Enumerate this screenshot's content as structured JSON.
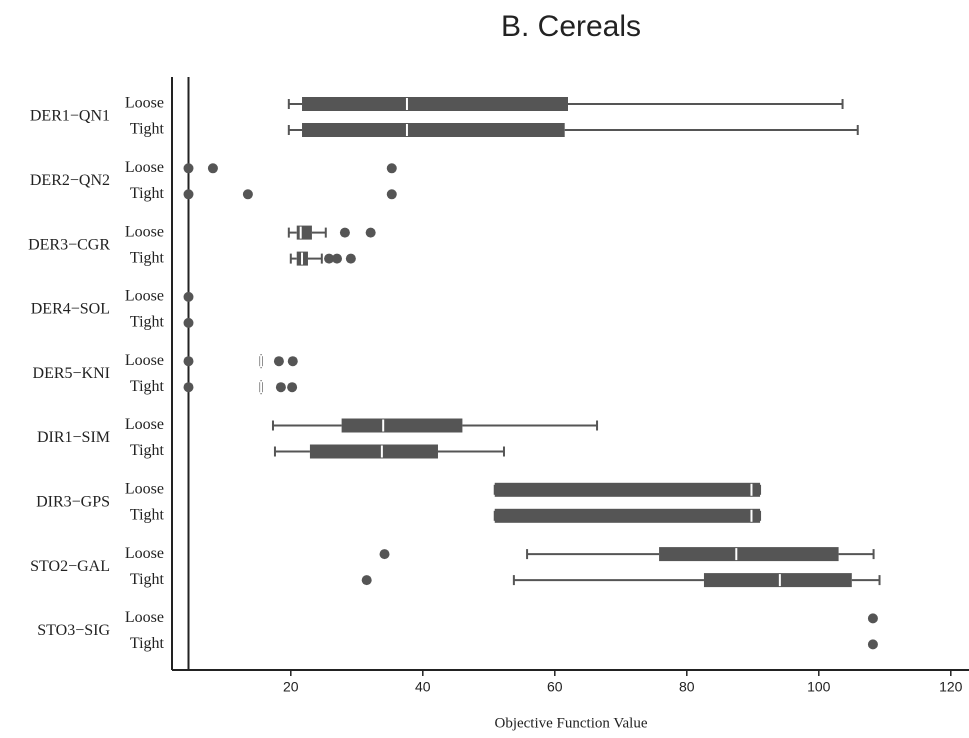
{
  "chart_data": {
    "type": "boxplot",
    "orientation": "horizontal",
    "title": "B. Cereals",
    "x_label": "Objective Function Value",
    "xlim": [
      2,
      122
    ],
    "xticks": [
      20,
      40,
      60,
      80,
      100,
      120
    ],
    "reference_line": 4.5,
    "color": "#555555",
    "median_color": "#ffffff",
    "groups": [
      {
        "name": "DER1−QN1",
        "rows": [
          {
            "name": "Loose",
            "box": {
              "min": 19.7,
              "q1": 21.7,
              "median": 37.6,
              "q3": 62,
              "max": 103.6
            },
            "outliers": []
          },
          {
            "name": "Tight",
            "box": {
              "min": 19.7,
              "q1": 21.7,
              "median": 37.6,
              "q3": 61.5,
              "max": 105.9
            },
            "outliers": []
          }
        ]
      },
      {
        "name": "DER2−QN2",
        "rows": [
          {
            "name": "Loose",
            "box": null,
            "outliers": [
              4.5,
              8.2,
              35.3
            ]
          },
          {
            "name": "Tight",
            "box": null,
            "outliers": [
              4.5,
              13.5,
              35.3
            ]
          }
        ]
      },
      {
        "name": "DER3−CGR",
        "rows": [
          {
            "name": "Loose",
            "box": {
              "min": 19.7,
              "q1": 20.9,
              "median": 21.5,
              "q3": 23.2,
              "max": 25.3
            },
            "outliers": [
              28.2,
              32.1
            ]
          },
          {
            "name": "Tight",
            "box": {
              "min": 20,
              "q1": 20.9,
              "median": 21.7,
              "q3": 22.6,
              "max": 24.7
            },
            "outliers": [
              25.8,
              27,
              29.1
            ]
          }
        ]
      },
      {
        "name": "DER4−SOL",
        "rows": [
          {
            "name": "Loose",
            "box": null,
            "outliers": [
              4.5
            ]
          },
          {
            "name": "Tight",
            "box": null,
            "outliers": [
              4.5
            ]
          }
        ]
      },
      {
        "name": "DER5−KNI",
        "rows": [
          {
            "name": "Loose",
            "box": {
              "min": 15.4,
              "q1": 15.4,
              "median": 15.5,
              "q3": 15.6,
              "max": 15.6
            },
            "outliers": [
              4.5,
              18.2,
              20.3
            ]
          },
          {
            "name": "Tight",
            "box": {
              "min": 15.4,
              "q1": 15.4,
              "median": 15.5,
              "q3": 15.6,
              "max": 15.6
            },
            "outliers": [
              4.5,
              18.5,
              20.2
            ]
          }
        ]
      },
      {
        "name": "DIR1−SIM",
        "rows": [
          {
            "name": "Loose",
            "box": {
              "min": 17.3,
              "q1": 27.7,
              "median": 34,
              "q3": 46,
              "max": 66.4
            },
            "outliers": []
          },
          {
            "name": "Tight",
            "box": {
              "min": 17.6,
              "q1": 22.9,
              "median": 33.8,
              "q3": 42.3,
              "max": 52.3
            },
            "outliers": []
          }
        ]
      },
      {
        "name": "DIR3−GPS",
        "rows": [
          {
            "name": "Loose",
            "box": {
              "min": 50.9,
              "q1": 50.9,
              "median": 89.8,
              "q3": 91.1,
              "max": 91.1
            },
            "outliers": []
          },
          {
            "name": "Tight",
            "box": {
              "min": 50.9,
              "q1": 50.9,
              "median": 89.8,
              "q3": 91.1,
              "max": 91.1
            },
            "outliers": []
          }
        ]
      },
      {
        "name": "STO2−GAL",
        "rows": [
          {
            "name": "Loose",
            "box": {
              "min": 55.8,
              "q1": 75.8,
              "median": 87.5,
              "q3": 103,
              "max": 108.3
            },
            "outliers": [
              34.2
            ]
          },
          {
            "name": "Tight",
            "box": {
              "min": 53.8,
              "q1": 82.6,
              "median": 94.1,
              "q3": 105,
              "max": 109.2
            },
            "outliers": [
              31.5
            ]
          }
        ]
      },
      {
        "name": "STO3−SIG",
        "rows": [
          {
            "name": "Loose",
            "box": null,
            "outliers": [
              108.2
            ]
          },
          {
            "name": "Tight",
            "box": null,
            "outliers": [
              108.2
            ]
          }
        ]
      }
    ]
  }
}
